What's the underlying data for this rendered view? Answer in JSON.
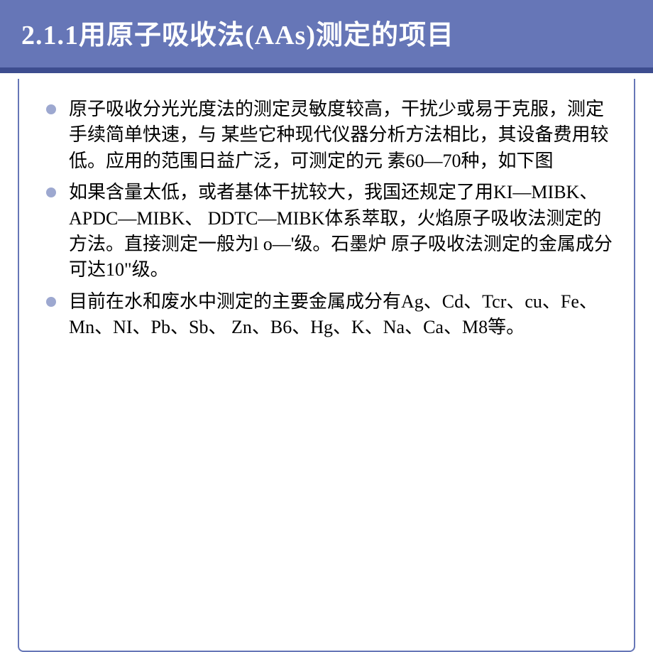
{
  "slide": {
    "title": "2.1.1用原子吸收法(AAs)测定的项目",
    "title_bg_color": "#6676b7",
    "title_text_color": "#ffffff",
    "title_fontsize": 38,
    "border_color": "#3d4d8f",
    "bullet_color": "#9da8d0",
    "body_fontsize": 26,
    "body_text_color": "#000000",
    "bullets": [
      "原子吸收分光光度法的测定灵敏度较高，干扰少或易于克服，测定手续简单快速，与 某些它种现代仪器分析方法相比，其设备费用较低。应用的范围日益广泛，可测定的元 素60—70种，如下图",
      "如果含量太低，或者基体干扰较大，我国还规定了用KI—MIBK、APDC—MIBK、 DDTC—MIBK体系萃取，火焰原子吸收法测定的方法。直接测定一般为l o—'级。石墨炉 原子吸收法测定的金属成分可达10\"级。",
      "目前在水和废水中测定的主要金属成分有Ag、Cd、Tcr、cu、Fe、Mn、NI、Pb、Sb、 Zn、B6、Hg、K、Na、Ca、M8等。"
    ]
  }
}
